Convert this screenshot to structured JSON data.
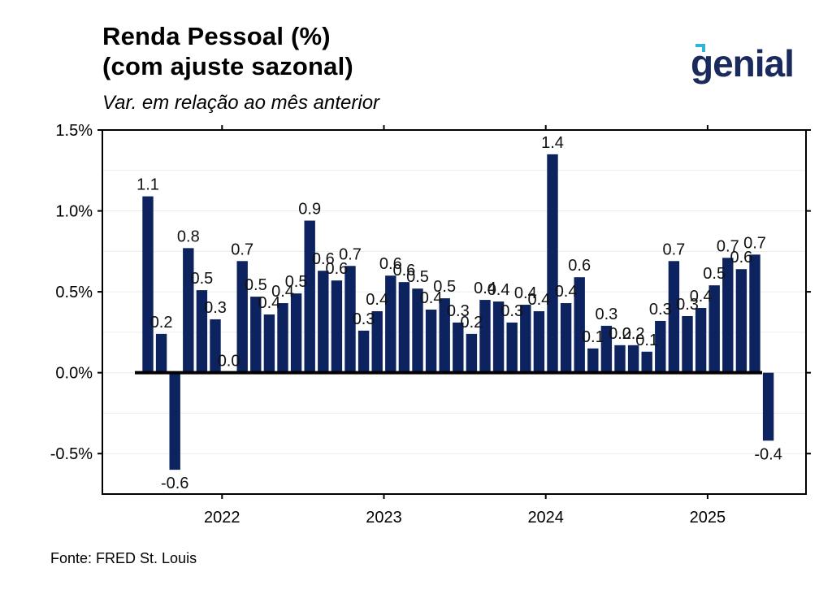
{
  "header": {
    "title_line1": "Renda Pessoal (%)",
    "title_line2": "(com ajuste sazonal)",
    "subtitle": "Var. em relação ao mês anterior"
  },
  "brand": {
    "logo_text": "genial",
    "color": "#1b2a5c",
    "accent": "#2fb3d6"
  },
  "footer": {
    "source": "Fonte: FRED St. Louis"
  },
  "colors": {
    "bar": "#0c2360",
    "zero_line": "#000000",
    "grid": "#ececec"
  },
  "chart_data": {
    "type": "bar",
    "title": "Renda Pessoal (%) (com ajuste sazonal)",
    "subtitle": "Var. em relação ao mês anterior",
    "xlabel": "",
    "ylabel": "",
    "ylim": [
      -0.75,
      1.5
    ],
    "y_ticks": [
      -0.5,
      0.0,
      0.5,
      1.0,
      1.5
    ],
    "y_tick_labels": [
      "-0.5%",
      "0.0%",
      "0.5%",
      "1.0%",
      "1.5%"
    ],
    "x_ticks": [
      "2022",
      "2023",
      "2024",
      "2025"
    ],
    "grid": true,
    "categories": [
      "2021-07",
      "2021-08",
      "2021-09",
      "2021-10",
      "2021-11",
      "2021-12",
      "2022-01",
      "2022-02",
      "2022-03",
      "2022-04",
      "2022-05",
      "2022-06",
      "2022-07",
      "2022-08",
      "2022-09",
      "2022-10",
      "2022-11",
      "2022-12",
      "2023-01",
      "2023-02",
      "2023-03",
      "2023-04",
      "2023-05",
      "2023-06",
      "2023-07",
      "2023-08",
      "2023-09",
      "2023-10",
      "2023-11",
      "2023-12",
      "2024-01",
      "2024-02",
      "2024-03",
      "2024-04",
      "2024-05",
      "2024-06",
      "2024-07",
      "2024-08",
      "2024-09",
      "2024-10",
      "2024-11",
      "2024-12",
      "2025-01",
      "2025-02",
      "2025-03",
      "2025-04",
      "2025-05"
    ],
    "values": [
      1.09,
      0.24,
      -0.6,
      0.77,
      0.51,
      0.33,
      0.0,
      0.69,
      0.47,
      0.36,
      0.43,
      0.49,
      0.94,
      0.63,
      0.57,
      0.66,
      0.26,
      0.38,
      0.6,
      0.56,
      0.52,
      0.39,
      0.46,
      0.31,
      0.24,
      0.45,
      0.44,
      0.31,
      0.42,
      0.38,
      1.35,
      0.43,
      0.59,
      0.15,
      0.29,
      0.17,
      0.17,
      0.13,
      0.32,
      0.69,
      0.35,
      0.4,
      0.54,
      0.71,
      0.64,
      0.73,
      -0.42
    ],
    "labels": [
      "1.1",
      "0.2",
      "-0.6",
      "0.8",
      "0.5",
      "0.3",
      "0.0",
      "0.7",
      "0.5",
      "0.4",
      "0.4",
      "0.5",
      "0.9",
      "0.6",
      "0.6",
      "0.7",
      "0.3",
      "0.4",
      "0.6",
      "0.6",
      "0.5",
      "0.4",
      "0.5",
      "0.3",
      "0.2",
      "0.4",
      "0.4",
      "0.3",
      "0.4",
      "0.4",
      "1.4",
      "0.4",
      "0.6",
      "0.1",
      "0.3",
      "0.2",
      "0.2",
      "0.1",
      "0.3",
      "0.7",
      "0.3",
      "0.4",
      "0.5",
      "0.7",
      "0.6",
      "0.7",
      "-0.4"
    ]
  }
}
